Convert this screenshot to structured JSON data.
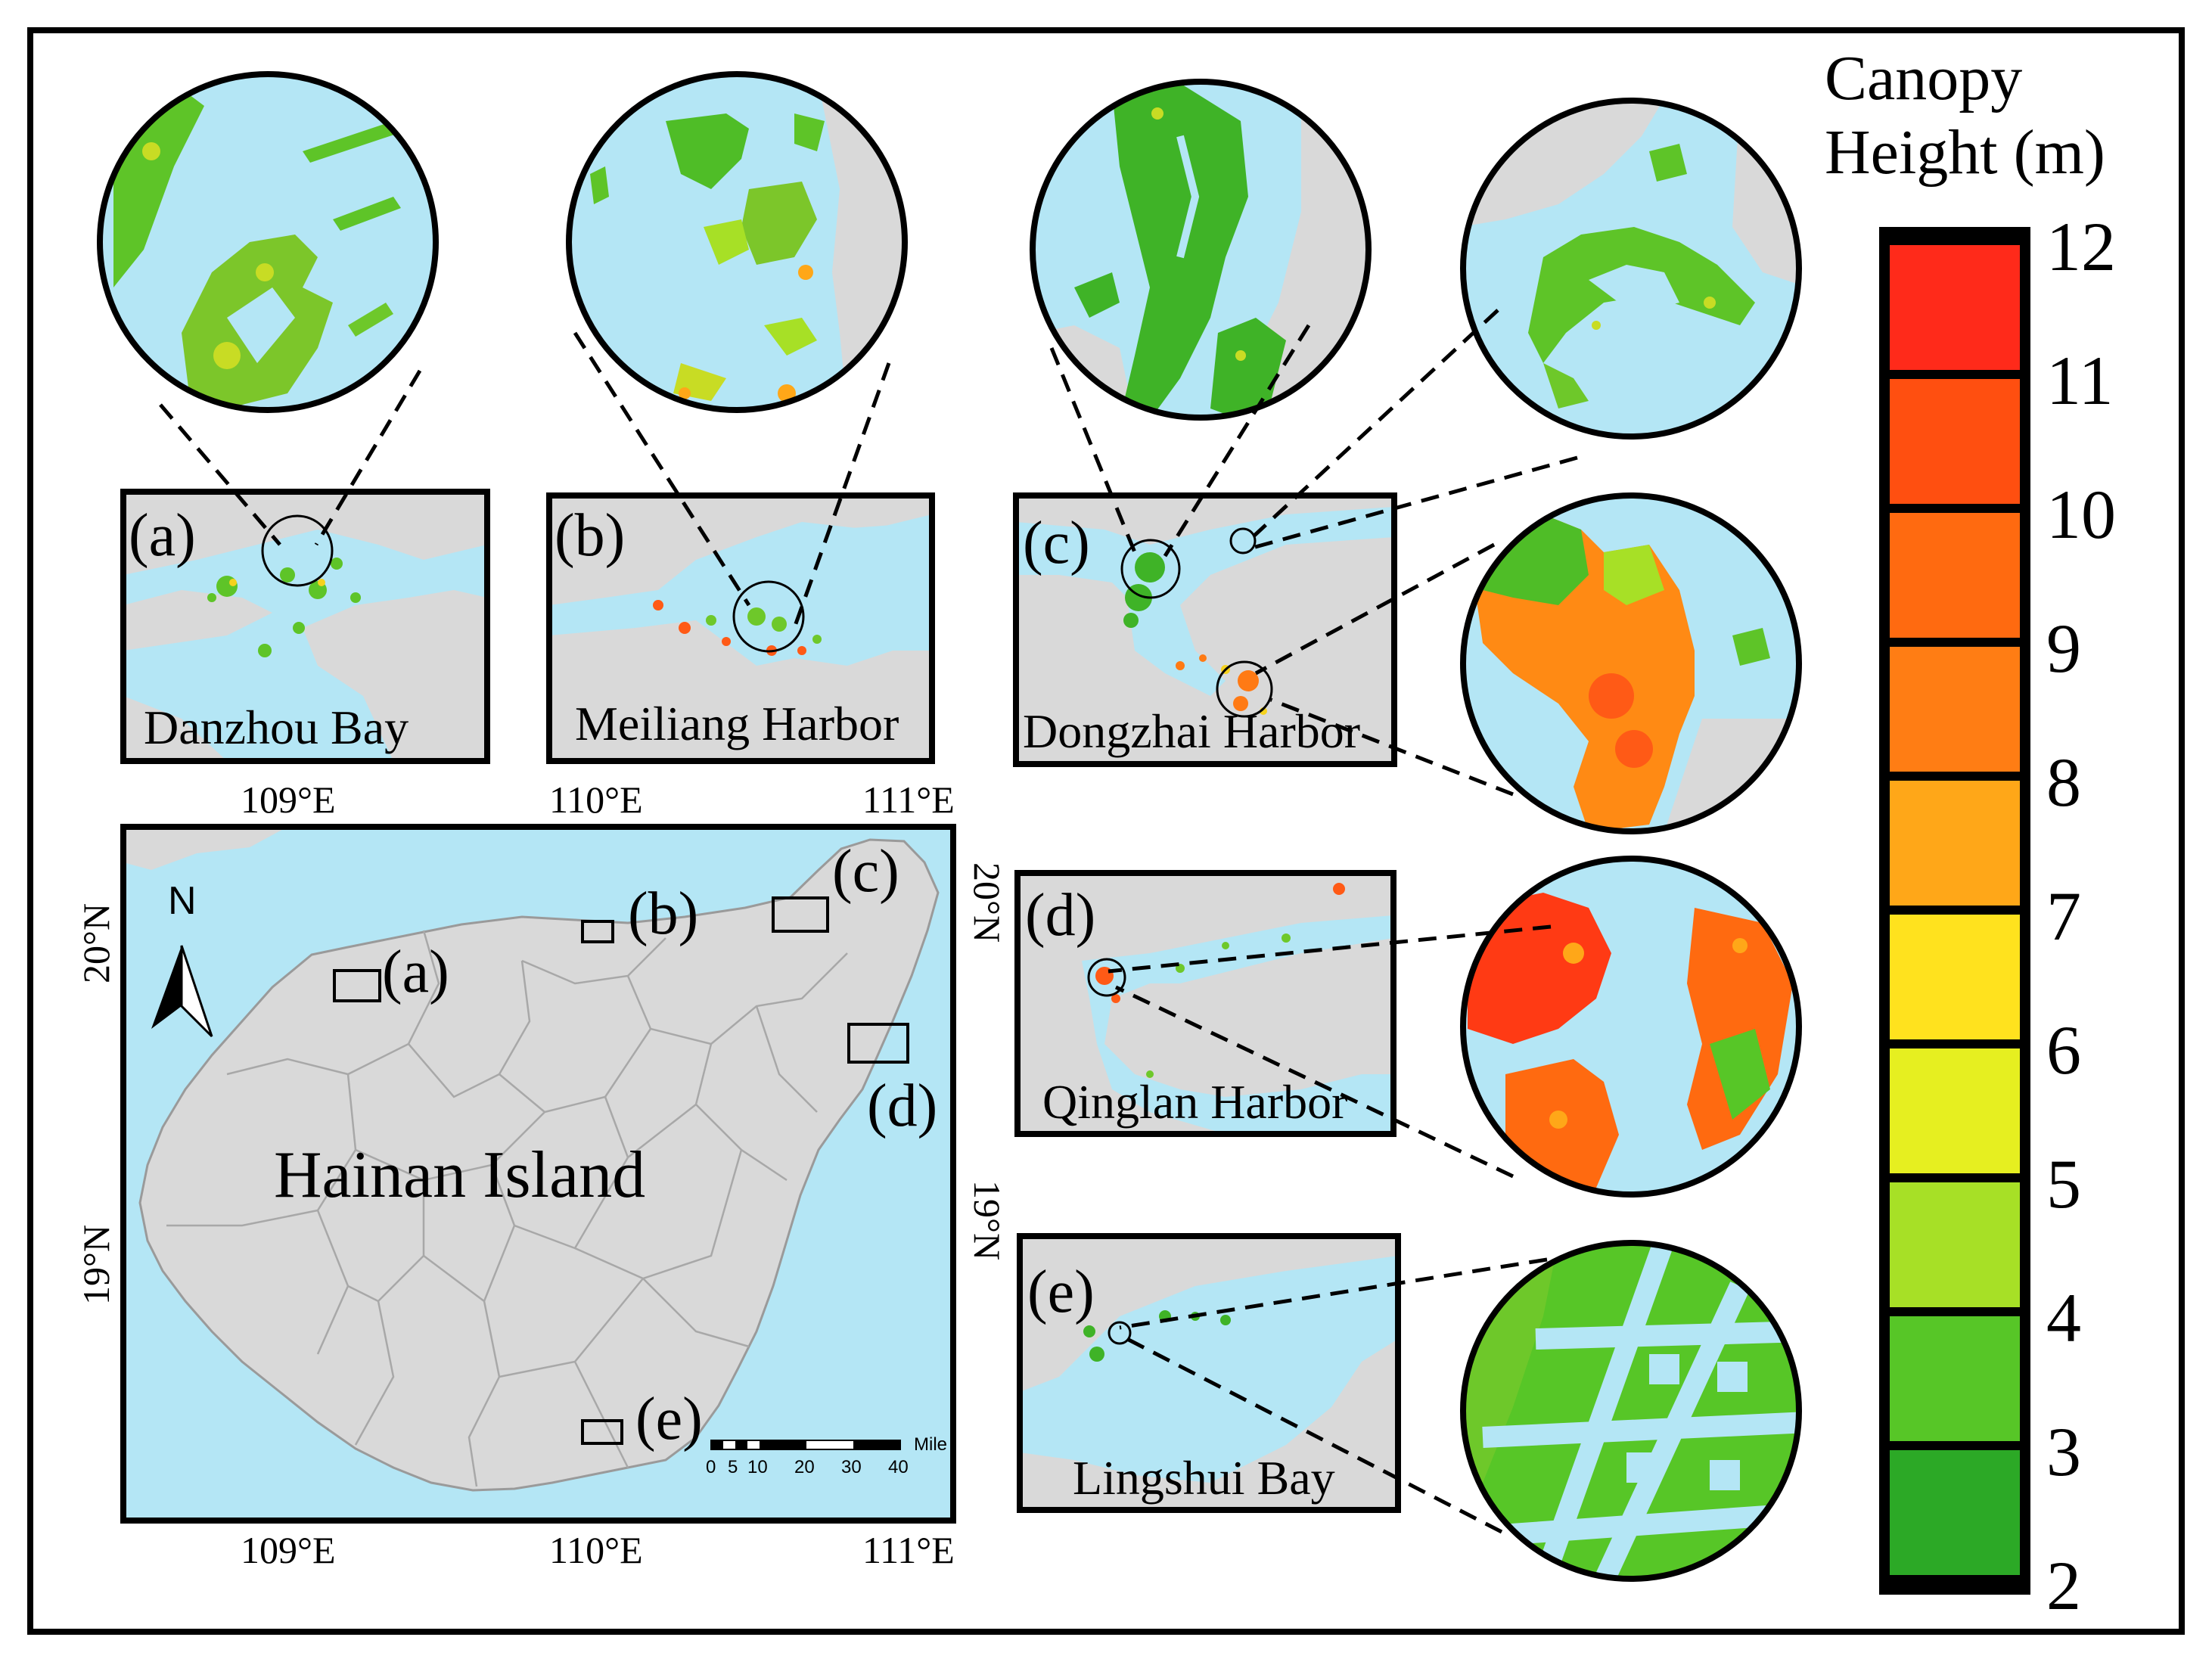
{
  "legend": {
    "title_line1": "Canopy",
    "title_line2": "Height (m)",
    "ticks": [
      "12",
      "11",
      "10",
      "9",
      "8",
      "7",
      "6",
      "5",
      "4",
      "3",
      "2"
    ],
    "colors": [
      "#ff2a1a",
      "#ff4f10",
      "#ff6a10",
      "#ff7d14",
      "#ffa718",
      "#ffe21e",
      "#e6ef20",
      "#a7e026",
      "#57c627",
      "#2ca926"
    ]
  },
  "panels": [
    {
      "letter": "(a)",
      "name": "Danzhou Bay"
    },
    {
      "letter": "(b)",
      "name": "Meiliang Harbor"
    },
    {
      "letter": "(c)",
      "name": "Dongzhai Harbor"
    },
    {
      "letter": "(d)",
      "name": "Qinglan Harbor"
    },
    {
      "letter": "(e)",
      "name": "Lingshui Bay"
    }
  ],
  "main_map": {
    "island_label": "Hainan Island",
    "north_label": "N",
    "markers": [
      "(a)",
      "(b)",
      "(c)",
      "(d)",
      "(e)"
    ],
    "top_coords": [
      "109°E",
      "110°E",
      "111°E"
    ],
    "bottom_coords": [
      "109°E",
      "110°E",
      "111°E"
    ],
    "left_coords": [
      "20°N",
      "19°N"
    ],
    "right_coords": [
      "20°N",
      "19°N"
    ],
    "scale": {
      "ticks": [
        "0",
        "5",
        "10",
        "20",
        "30",
        "40"
      ],
      "unit": "Mile"
    }
  },
  "colors": {
    "water": "#b4e6f5",
    "land": "#d9d9d9",
    "border": "#000000"
  }
}
